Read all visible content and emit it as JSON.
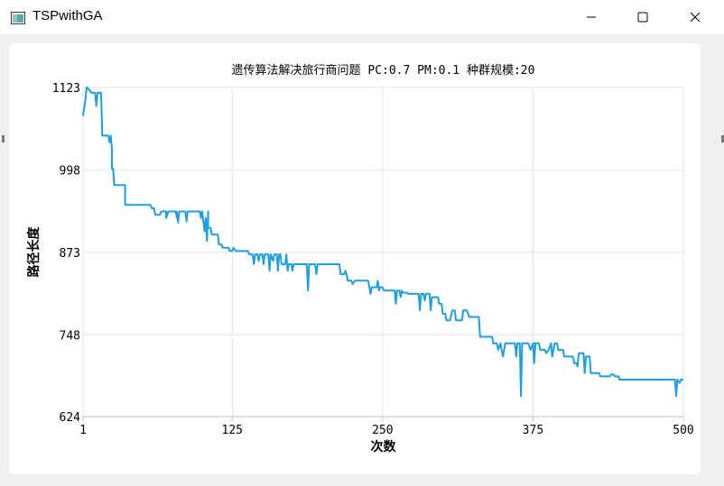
{
  "window": {
    "title": "TSPwithGA",
    "icon": "app-window-icon",
    "controls": {
      "minimize": "minimize-icon",
      "maximize": "maximize-icon",
      "close": "close-icon"
    }
  },
  "colors": {
    "series": "#209fdf",
    "grid": "#e4e4e4",
    "axis": "#c0c0c0",
    "text": "#000000"
  },
  "chart_data": {
    "type": "line",
    "title": "遗传算法解决旅行商问题 PC:0.7 PM:0.1 种群规模:20",
    "xlabel": "次数",
    "ylabel": "路径长度",
    "xlim": [
      1,
      500
    ],
    "ylim": [
      624,
      1123
    ],
    "xticks": [
      1,
      125,
      250,
      375,
      500
    ],
    "yticks": [
      624,
      748,
      873,
      998,
      1123
    ],
    "grid": true,
    "legend": "none",
    "series": [
      {
        "points": [
          [
            1,
            1080
          ],
          [
            3,
            1105
          ],
          [
            4,
            1123
          ],
          [
            6,
            1120
          ],
          [
            8,
            1115
          ],
          [
            11,
            1115
          ],
          [
            12,
            1095
          ],
          [
            13,
            1115
          ],
          [
            16,
            1115
          ],
          [
            17,
            1050
          ],
          [
            22,
            1050
          ],
          [
            23,
            1040
          ],
          [
            24,
            1050
          ],
          [
            25,
            1030
          ],
          [
            25,
            1000
          ],
          [
            26,
            1000
          ],
          [
            27,
            975
          ],
          [
            36,
            975
          ],
          [
            36,
            945
          ],
          [
            57,
            945
          ],
          [
            58,
            940
          ],
          [
            60,
            940
          ],
          [
            61,
            930
          ],
          [
            65,
            930
          ],
          [
            66,
            935
          ],
          [
            70,
            935
          ],
          [
            70,
            925
          ],
          [
            72,
            935
          ],
          [
            78,
            935
          ],
          [
            79,
            925
          ],
          [
            79,
            935
          ],
          [
            80,
            918
          ],
          [
            81,
            935
          ],
          [
            86,
            935
          ],
          [
            87,
            920
          ],
          [
            88,
            935
          ],
          [
            98,
            935
          ],
          [
            99,
            925
          ],
          [
            100,
            935
          ],
          [
            102,
            905
          ],
          [
            103,
            925
          ],
          [
            104,
            890
          ],
          [
            105,
            935
          ],
          [
            105,
            910
          ],
          [
            107,
            910
          ],
          [
            108,
            900
          ],
          [
            113,
            900
          ],
          [
            114,
            885
          ],
          [
            116,
            885
          ],
          [
            117,
            880
          ],
          [
            122,
            880
          ],
          [
            123,
            875
          ],
          [
            125,
            875
          ],
          [
            126,
            880
          ],
          [
            128,
            875
          ],
          [
            138,
            875
          ],
          [
            139,
            870
          ],
          [
            142,
            870
          ],
          [
            143,
            855
          ],
          [
            144,
            870
          ],
          [
            146,
            870
          ],
          [
            147,
            860
          ],
          [
            148,
            870
          ],
          [
            150,
            870
          ],
          [
            151,
            855
          ],
          [
            152,
            870
          ],
          [
            155,
            870
          ],
          [
            156,
            845
          ],
          [
            157,
            870
          ],
          [
            159,
            860
          ],
          [
            160,
            870
          ],
          [
            162,
            870
          ],
          [
            163,
            845
          ],
          [
            164,
            870
          ],
          [
            165,
            870
          ],
          [
            166,
            855
          ],
          [
            169,
            855
          ],
          [
            170,
            870
          ],
          [
            171,
            845
          ],
          [
            172,
            855
          ],
          [
            174,
            855
          ],
          [
            175,
            845
          ],
          [
            176,
            855
          ],
          [
            187,
            855
          ],
          [
            188,
            815
          ],
          [
            189,
            855
          ],
          [
            189,
            855
          ],
          [
            194,
            855
          ],
          [
            195,
            840
          ],
          [
            196,
            855
          ],
          [
            214,
            855
          ],
          [
            215,
            840
          ],
          [
            216,
            840
          ],
          [
            218,
            840
          ],
          [
            219,
            845
          ],
          [
            220,
            840
          ],
          [
            221,
            830
          ],
          [
            224,
            830
          ],
          [
            225,
            825
          ],
          [
            227,
            830
          ],
          [
            238,
            830
          ],
          [
            239,
            820
          ],
          [
            240,
            810
          ],
          [
            241,
            820
          ],
          [
            245,
            820
          ],
          [
            246,
            830
          ],
          [
            247,
            815
          ],
          [
            248,
            820
          ],
          [
            250,
            820
          ],
          [
            251,
            815
          ],
          [
            260,
            815
          ],
          [
            261,
            795
          ],
          [
            262,
            815
          ],
          [
            264,
            815
          ],
          [
            265,
            805
          ],
          [
            266,
            815
          ],
          [
            266,
            812
          ],
          [
            270,
            812
          ],
          [
            271,
            810
          ],
          [
            280,
            810
          ],
          [
            281,
            785
          ],
          [
            282,
            810
          ],
          [
            284,
            810
          ],
          [
            285,
            800
          ],
          [
            286,
            810
          ],
          [
            289,
            810
          ],
          [
            290,
            785
          ],
          [
            291,
            805
          ],
          [
            296,
            805
          ],
          [
            297,
            795
          ],
          [
            299,
            795
          ],
          [
            300,
            780
          ],
          [
            302,
            780
          ],
          [
            303,
            770
          ],
          [
            306,
            770
          ],
          [
            308,
            785
          ],
          [
            310,
            785
          ],
          [
            311,
            770
          ],
          [
            316,
            770
          ],
          [
            317,
            785
          ],
          [
            320,
            785
          ],
          [
            322,
            775
          ],
          [
            330,
            775
          ],
          [
            331,
            745
          ],
          [
            341,
            745
          ],
          [
            342,
            735
          ],
          [
            345,
            735
          ],
          [
            346,
            725
          ],
          [
            348,
            735
          ],
          [
            350,
            715
          ],
          [
            352,
            735
          ],
          [
            360,
            735
          ],
          [
            361,
            715
          ],
          [
            362,
            735
          ],
          [
            364,
            735
          ],
          [
            365,
            655
          ],
          [
            366,
            735
          ],
          [
            371,
            735
          ],
          [
            373,
            725
          ],
          [
            375,
            735
          ],
          [
            376,
            705
          ],
          [
            377,
            735
          ],
          [
            376,
            735
          ],
          [
            378,
            735
          ],
          [
            380,
            735
          ],
          [
            381,
            725
          ],
          [
            385,
            725
          ],
          [
            386,
            720
          ],
          [
            388,
            725
          ],
          [
            390,
            735
          ],
          [
            391,
            715
          ],
          [
            393,
            735
          ],
          [
            395,
            735
          ],
          [
            396,
            725
          ],
          [
            400,
            725
          ],
          [
            401,
            715
          ],
          [
            404,
            715
          ],
          [
            405,
            715
          ],
          [
            408,
            715
          ],
          [
            409,
            710
          ],
          [
            409,
            705
          ],
          [
            411,
            705
          ],
          [
            412,
            700
          ],
          [
            413,
            720
          ],
          [
            417,
            720
          ],
          [
            418,
            690
          ],
          [
            419,
            715
          ],
          [
            422,
            715
          ],
          [
            423,
            690
          ],
          [
            430,
            690
          ],
          [
            431,
            685
          ],
          [
            439,
            685
          ],
          [
            440,
            688
          ],
          [
            442,
            688
          ],
          [
            443,
            685
          ],
          [
            446,
            685
          ],
          [
            447,
            680
          ],
          [
            471,
            680
          ],
          [
            472,
            680
          ],
          [
            493,
            680
          ],
          [
            494,
            655
          ],
          [
            495,
            680
          ],
          [
            497,
            675
          ],
          [
            498,
            680
          ],
          [
            500,
            680
          ]
        ]
      }
    ]
  }
}
